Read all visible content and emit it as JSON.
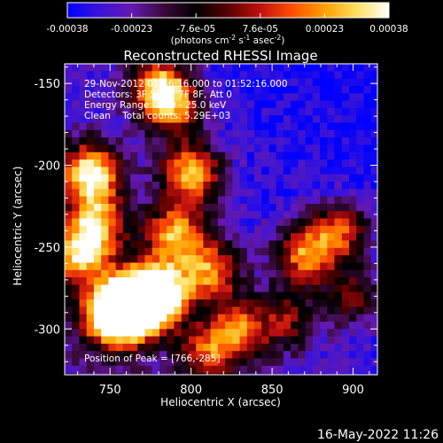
{
  "chart_data": {
    "type": "heatmap",
    "title": "Reconstructed RHESSI Image",
    "xlabel": "Heliocentric X (arcsec)",
    "ylabel": "Heliocentric Y (arcsec)",
    "xlim": [
      722,
      915
    ],
    "ylim": [
      -328,
      -138
    ],
    "x_ticks": [
      750,
      800,
      850,
      900
    ],
    "y_ticks": [
      -150,
      -200,
      -250,
      -300
    ],
    "colorbar": {
      "ticks": [
        "-0.00038",
        "-0.00023",
        "-7.6e-05",
        "7.6e-05",
        "0.00023",
        "0.00038"
      ],
      "min": -0.00038,
      "max": 0.00038,
      "units": "(photons cm",
      "units_sup1": "-2",
      "units_mid": " s",
      "units_sup2": "-1",
      "units_end": " asec",
      "units_sup3": "-2",
      "units_close": ")",
      "colors": [
        "#0000ff",
        "#3a14d8",
        "#6418b0",
        "#3a0a3a",
        "#000000",
        "#5a0000",
        "#c01010",
        "#ff5000",
        "#ffa000",
        "#ffe060",
        "#ffffff"
      ]
    },
    "annotations": {
      "line1": "29-Nov-2012 01:46:16.000 to 01:52:16.000",
      "line2": "Detectors: 3F 5F 6F 7F 8F, Att 0",
      "line3": "Energy Range: 12.0 - 25.0 keV",
      "line4": "Clean    Total counts: 5.29E+03",
      "peak": "Position of Peak = [766,-285]"
    },
    "peak_position": [
      766,
      -285
    ],
    "features": [
      {
        "x": 766,
        "y": -285,
        "intensity": 1.0
      },
      {
        "x": 752,
        "y": -292,
        "intensity": 0.85
      },
      {
        "x": 780,
        "y": -278,
        "intensity": 0.75
      },
      {
        "x": 738,
        "y": -205,
        "intensity": 0.7
      },
      {
        "x": 732,
        "y": -255,
        "intensity": 0.6
      },
      {
        "x": 790,
        "y": -242,
        "intensity": 0.55
      },
      {
        "x": 800,
        "y": -205,
        "intensity": 0.6
      },
      {
        "x": 780,
        "y": -152,
        "intensity": 0.55
      },
      {
        "x": 790,
        "y": -165,
        "intensity": 0.4
      },
      {
        "x": 812,
        "y": -265,
        "intensity": 0.5
      },
      {
        "x": 830,
        "y": -300,
        "intensity": 0.45
      },
      {
        "x": 810,
        "y": -315,
        "intensity": 0.4
      },
      {
        "x": 870,
        "y": -255,
        "intensity": 0.5
      },
      {
        "x": 892,
        "y": -240,
        "intensity": 0.45
      },
      {
        "x": 860,
        "y": -295,
        "intensity": 0.3
      },
      {
        "x": 742,
        "y": -235,
        "intensity": 0.5
      },
      {
        "x": 900,
        "y": -280,
        "intensity": 0.3
      }
    ]
  },
  "footer": {
    "timestamp": "16-May-2022 11:26"
  }
}
